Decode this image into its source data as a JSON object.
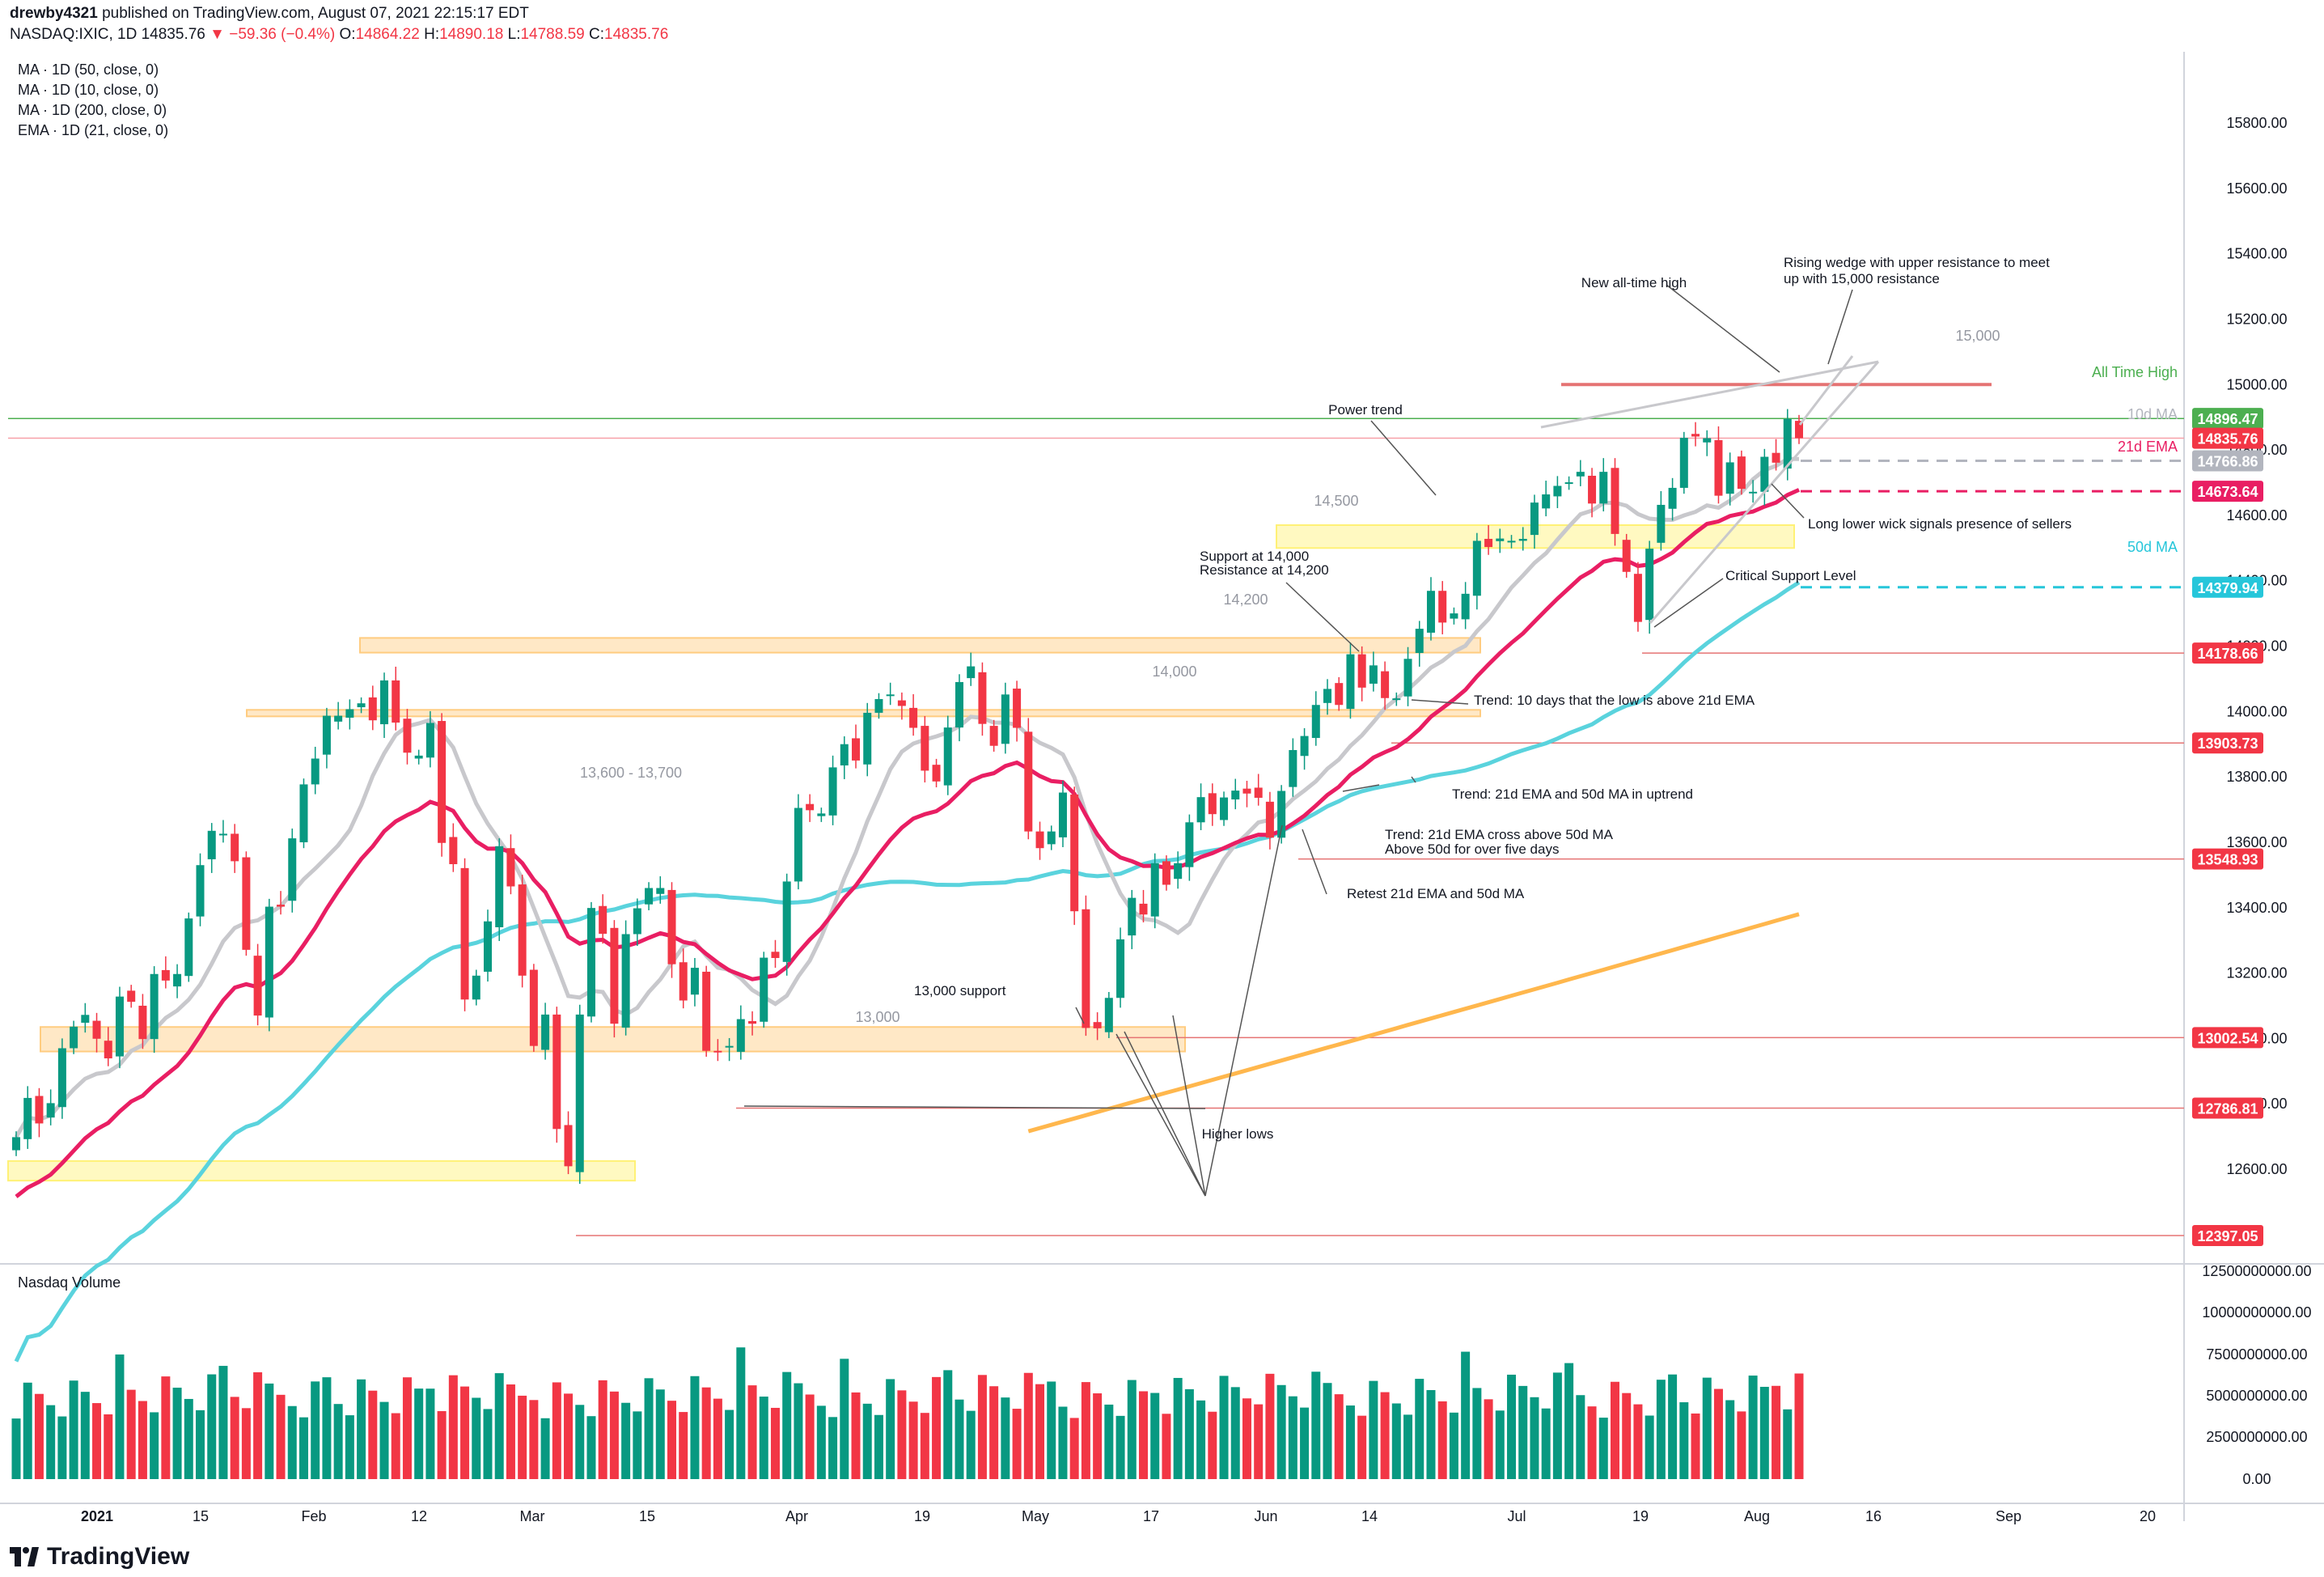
{
  "header": {
    "user": "drewby4321",
    "published": "published on TradingView.com, August 07, 2021 22:15:17 EDT",
    "symbol": "NASDAQ:IXIC, 1D",
    "last": "14835.76",
    "change": "−59.36 (−0.4%)",
    "o_label": "O:",
    "o": "14864.22",
    "h_label": "H:",
    "h": "14890.18",
    "l_label": "L:",
    "l": "14788.59",
    "c_label": "C:",
    "c": "14835.76"
  },
  "legend": [
    "MA · 1D (50, close, 0)",
    "MA · 1D (10, close, 0)",
    "MA · 1D (200, close, 0)",
    "EMA · 1D (21, close, 0)"
  ],
  "volume_title": "Nasdaq Volume",
  "brand": "TradingView",
  "colors": {
    "up": "#089981",
    "down": "#f23645",
    "ma10": "#c8c8cc",
    "ema21": "#e91e63",
    "ma50": "#5ad3dd",
    "ma200": "#ffb74d",
    "zone_orange": "#ffcc80",
    "zone_yellow": "#fff176",
    "ath_line": "#4caf50",
    "resistance_line": "#e57373"
  },
  "chart_data": {
    "type": "candlestick",
    "title": "NASDAQ:IXIC, 1D",
    "price_axis": {
      "ticks": [
        "15800.00",
        "15600.00",
        "15400.00",
        "15200.00",
        "15000.00",
        "14800.00",
        "14600.00",
        "14400.00",
        "14200.00",
        "14000.00",
        "13800.00",
        "13600.00",
        "13400.00",
        "13200.00",
        "13000.00",
        "12800.00",
        "12600.00"
      ]
    },
    "volume_axis": {
      "ticks": [
        "12500000000.00",
        "10000000000.00",
        "7500000000.00",
        "5000000000.00",
        "2500000000.00",
        "0.00"
      ]
    },
    "time_axis": {
      "ticks": [
        "2021",
        "15",
        "Feb",
        "12",
        "Mar",
        "15",
        "Apr",
        "19",
        "May",
        "17",
        "Jun",
        "14",
        "Jul",
        "19",
        "Aug",
        "16",
        "Sep",
        "20"
      ]
    },
    "price_tags": [
      {
        "value": "14896.47",
        "color": "#4caf50",
        "note": "All Time High"
      },
      {
        "value": "14835.76",
        "color": "#f23645",
        "note": "last close"
      },
      {
        "value": "14766.86",
        "color": "#b2b5be",
        "note": "10d MA"
      },
      {
        "value": "14673.64",
        "color": "#e91e63",
        "note": "21d EMA"
      },
      {
        "value": "14379.94",
        "color": "#26c6da",
        "note": "50d MA"
      },
      {
        "value": "14178.66",
        "color": "#f23645",
        "note": ""
      },
      {
        "value": "13903.73",
        "color": "#f23645",
        "note": ""
      },
      {
        "value": "13548.93",
        "color": "#f23645",
        "note": ""
      },
      {
        "value": "13002.54",
        "color": "#f23645",
        "note": ""
      },
      {
        "value": "12786.81",
        "color": "#f23645",
        "note": ""
      },
      {
        "value": "12397.05",
        "color": "#f23645",
        "note": ""
      }
    ],
    "series": [
      {
        "name": "MA · 1D (10, close, 0)",
        "color": "#c8c8cc"
      },
      {
        "name": "EMA · 1D (21, close, 0)",
        "color": "#e91e63"
      },
      {
        "name": "MA · 1D (50, close, 0)",
        "color": "#5ad3dd"
      },
      {
        "name": "MA · 1D (200, close, 0)",
        "color": "#ffb74d"
      }
    ],
    "closes": [
      12698,
      12818,
      12740,
      12802,
      12970,
      13036,
      13072,
      12999,
      12939,
      13128,
      13112,
      12998,
      13197,
      13177,
      13197,
      13367,
      13530,
      13635,
      13626,
      13542,
      13271,
      13070,
      13403,
      13403,
      13612,
      13777,
      13856,
      13987,
      13987,
      14007,
      14025,
      13973,
      14095,
      13966,
      13874,
      13865,
      13965,
      13598,
      13533,
      13119,
      13192,
      13358,
      13588,
      13465,
      13192,
      12977,
      13073,
      12723,
      12609,
      13073,
      13399,
      13320,
      13045,
      13319,
      13398,
      13460,
      13460,
      13227,
      13116,
      13216,
      12962,
      12961,
      12977,
      13059,
      13045,
      13247,
      13246,
      13480,
      13705,
      13698,
      13688,
      13829,
      13900,
      13850,
      13996,
      14038,
      14052,
      14017,
      13950,
      13819,
      13786,
      13951,
      14090,
      14138,
      13962,
      13895,
      14052,
      13950,
      13633,
      13582,
      13633,
      13752,
      13389,
      13032,
      13031,
      13124,
      13303,
      13430,
      13379,
      13536,
      13470,
      13536,
      13661,
      13738,
      13686,
      13737,
      13758,
      13749,
      13736,
      13614,
      13757,
      13882,
      13925,
      14020,
      14069,
      14020,
      14175,
      14073,
      14141,
      14041,
      14040,
      14161,
      14253,
      14369,
      14272,
      14300,
      14360,
      14522,
      14503,
      14529,
      14522,
      14528,
      14639,
      14664,
      14690,
      14701,
      14733,
      14636,
      14733,
      14543,
      14427,
      14274,
      14498,
      14632,
      14684,
      14837,
      14841,
      14836,
      14660,
      14762,
      14681,
      14672,
      14779,
      14761,
      14895,
      14836
    ],
    "annotations": [
      "Rising wedge with upper resistance to meet up with 15,000 resistance",
      "New all-time high",
      "15,000",
      "All Time High",
      "10d MA",
      "21d EMA",
      "50d MA",
      "Power trend",
      "14,500",
      "Long lower wick signals presence of sellers",
      "Support at 14,000",
      "Resistance at 14,200",
      "Critical Support Level",
      "14,200",
      "14,000",
      "Trend: 10 days that the low is above 21d EMA",
      "13,600 - 13,700",
      "Trend: 21d EMA and 50d MA in uptrend",
      "Trend: 21d EMA cross above 50d MA",
      "Above 50d for over five days",
      "Retest 21d EMA and 50d MA",
      "13,000 support",
      "13,000",
      "Higher lows"
    ]
  }
}
